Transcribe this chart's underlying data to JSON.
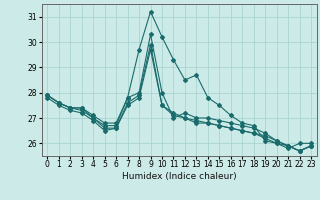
{
  "xlabel": "Humidex (Indice chaleur)",
  "ylabel": "",
  "background_color": "#cceae7",
  "grid_color": "#aad4d0",
  "line_color": "#1a6b6b",
  "ylim": [
    25.5,
    31.5
  ],
  "xlim": [
    -0.5,
    23.5
  ],
  "yticks": [
    26,
    27,
    28,
    29,
    30,
    31
  ],
  "xticks": [
    0,
    1,
    2,
    3,
    4,
    5,
    6,
    7,
    8,
    9,
    10,
    11,
    12,
    13,
    14,
    15,
    16,
    17,
    18,
    19,
    20,
    21,
    22,
    23
  ],
  "series": [
    [
      27.9,
      27.6,
      27.4,
      27.4,
      27.0,
      26.7,
      26.7,
      27.8,
      29.7,
      31.2,
      30.2,
      29.3,
      28.5,
      28.7,
      27.8,
      27.5,
      27.1,
      26.8,
      26.7,
      26.1,
      26.0,
      25.8,
      26.0,
      26.0
    ],
    [
      27.9,
      27.6,
      27.4,
      27.4,
      27.1,
      26.8,
      26.8,
      27.8,
      28.0,
      30.3,
      28.0,
      27.0,
      27.2,
      27.0,
      27.0,
      26.9,
      26.8,
      26.7,
      26.6,
      26.4,
      26.1,
      25.9,
      25.7,
      25.9
    ],
    [
      27.9,
      27.6,
      27.4,
      27.3,
      27.0,
      26.6,
      26.6,
      27.6,
      27.9,
      29.9,
      27.5,
      27.2,
      27.0,
      26.9,
      26.8,
      26.7,
      26.6,
      26.5,
      26.4,
      26.3,
      26.1,
      25.9,
      25.7,
      25.9
    ],
    [
      27.8,
      27.5,
      27.3,
      27.2,
      26.9,
      26.5,
      26.6,
      27.5,
      27.8,
      29.7,
      27.5,
      27.1,
      27.0,
      26.8,
      26.8,
      26.7,
      26.6,
      26.5,
      26.4,
      26.2,
      26.0,
      25.9,
      25.7,
      25.9
    ]
  ]
}
